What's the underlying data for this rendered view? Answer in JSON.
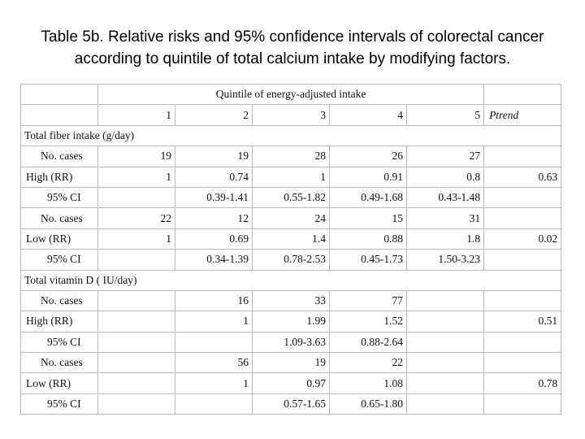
{
  "header": {
    "title": "Table 5b. Relative risks and 95% confidence intervals of colorectal cancer according to quintile of total calcium intake by modifying factors."
  },
  "table": {
    "group_header": "Quintile of energy-adjusted intake",
    "columns": [
      "1",
      "2",
      "3",
      "4",
      "5",
      "Ptrend"
    ],
    "rows": [
      {
        "section": "Total fiber intake (g/day)"
      },
      {
        "label": "No. cases",
        "cells": [
          19,
          19,
          28,
          26,
          27,
          null
        ]
      },
      {
        "label": "High (RR)",
        "cells": [
          1,
          0.74,
          1,
          0.91,
          0.8,
          0.63
        ]
      },
      {
        "label": "95% CI",
        "cells": [
          null,
          "0.39-1.41",
          "0.55-1.82",
          "0.49-1.68",
          "0.43-1.48",
          null
        ]
      },
      {
        "label": "No. cases",
        "cells": [
          22,
          12,
          24,
          15,
          31,
          null
        ]
      },
      {
        "label": "Low (RR)",
        "cells": [
          1,
          0.69,
          1.4,
          0.88,
          1.8,
          0.02
        ]
      },
      {
        "label": "95% CI",
        "cells": [
          null,
          "0.34-1.39",
          "0.78-2.53",
          "0.45-1.73",
          "1.50-3.23",
          null
        ]
      },
      {
        "section": "Total vitamin D ( IU/day)"
      },
      {
        "label": "No. cases",
        "cells": [
          null,
          16,
          33,
          77,
          null,
          null
        ]
      },
      {
        "label": "High (RR)",
        "cells": [
          null,
          1,
          1.99,
          1.52,
          null,
          0.51
        ]
      },
      {
        "label": "95% CI",
        "cells": [
          null,
          null,
          "1.09-3.63",
          "0.88-2.64",
          null,
          null
        ]
      },
      {
        "label": "No. cases",
        "cells": [
          null,
          56,
          19,
          22,
          null,
          null
        ]
      },
      {
        "label": "Low (RR)",
        "cells": [
          null,
          1,
          0.97,
          1.08,
          null,
          0.78
        ]
      },
      {
        "label": "95% CI",
        "cells": [
          null,
          null,
          "0.57-1.65",
          "0.65-1.80",
          null,
          null
        ]
      }
    ]
  }
}
